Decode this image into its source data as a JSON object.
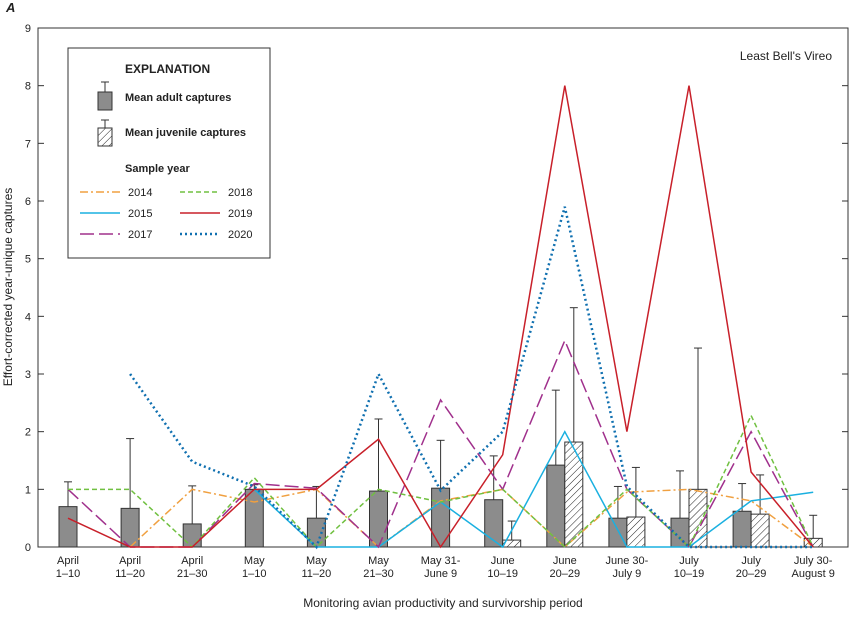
{
  "chart_data": {
    "type": "bar-line",
    "panel_label": "A",
    "annotation": "Least Bell's Vireo",
    "y_label": "Effort-corrected year-unique captures",
    "x_label": "Monitoring avian productivity and survivorship period",
    "legend_title": "EXPLANATION",
    "legend_subtitle": "Sample year",
    "categories": [
      [
        "April",
        "1–10"
      ],
      [
        "April",
        "11–20"
      ],
      [
        "April",
        "21–30"
      ],
      [
        "May",
        "1–10"
      ],
      [
        "May",
        "11–20"
      ],
      [
        "May",
        "21–30"
      ],
      [
        "May 31-",
        "June 9"
      ],
      [
        "June",
        "10–19"
      ],
      [
        "June",
        "20–29"
      ],
      [
        "June 30-",
        "July 9"
      ],
      [
        "July",
        "10–19"
      ],
      [
        "July",
        "20–29"
      ],
      [
        "July 30-",
        "August 9"
      ]
    ],
    "ylim": [
      0,
      9
    ],
    "yticks": [
      0,
      1,
      2,
      3,
      4,
      5,
      6,
      7,
      8,
      9
    ],
    "bars": [
      {
        "name": "Mean adult captures",
        "color": "#8c8c8c",
        "values": [
          0.7,
          0.67,
          0.4,
          1.0,
          0.5,
          0.97,
          1.02,
          0.82,
          1.42,
          0.5,
          0.5,
          0.62,
          null
        ],
        "errors": [
          0.43,
          1.21,
          0.66,
          0.08,
          0.55,
          1.25,
          0.83,
          0.76,
          1.3,
          0.55,
          0.82,
          0.48,
          null
        ]
      },
      {
        "name": "Mean juvenile captures",
        "color": "#ffffff",
        "values": [
          null,
          null,
          null,
          null,
          null,
          null,
          null,
          0.12,
          1.82,
          0.52,
          1.0,
          0.57,
          0.15
        ],
        "errors": [
          null,
          null,
          null,
          null,
          null,
          null,
          null,
          0.33,
          2.33,
          0.86,
          2.45,
          0.68,
          0.4
        ]
      }
    ],
    "series": [
      {
        "name": "2014",
        "color": "#f0a040",
        "dash": "8,3,2,3",
        "values": [
          null,
          0,
          1.0,
          0.78,
          1.0,
          0,
          0.8,
          1.0,
          0,
          0.95,
          1.0,
          0.8,
          0
        ]
      },
      {
        "name": "2015",
        "color": "#1ab0e0",
        "dash": "",
        "values": [
          null,
          null,
          null,
          1.0,
          0,
          0,
          0.78,
          0,
          2.0,
          0,
          0,
          0.8,
          0.95
        ]
      },
      {
        "name": "2017",
        "color": "#a0308c",
        "dash": "14,5",
        "values": [
          1.0,
          0,
          0,
          1.1,
          1.02,
          0,
          2.55,
          1.0,
          3.58,
          1.0,
          0,
          2.0,
          0
        ]
      },
      {
        "name": "2018",
        "color": "#70c040",
        "dash": "5,3",
        "values": [
          1.0,
          1.0,
          0,
          1.2,
          0,
          1.0,
          0.78,
          1.0,
          0,
          1.0,
          0,
          2.28,
          0
        ]
      },
      {
        "name": "2019",
        "color": "#c8202a",
        "dash": "",
        "values": [
          0.5,
          0,
          0,
          1.0,
          1.0,
          1.87,
          0,
          1.6,
          8.0,
          2.0,
          8.0,
          1.3,
          0
        ]
      },
      {
        "name": "2020",
        "color": "#1070b0",
        "dash": "2,3",
        "values": [
          null,
          3.0,
          1.48,
          1.05,
          0,
          3.0,
          0.98,
          2.0,
          5.9,
          1.05,
          0,
          0,
          0
        ]
      }
    ]
  }
}
